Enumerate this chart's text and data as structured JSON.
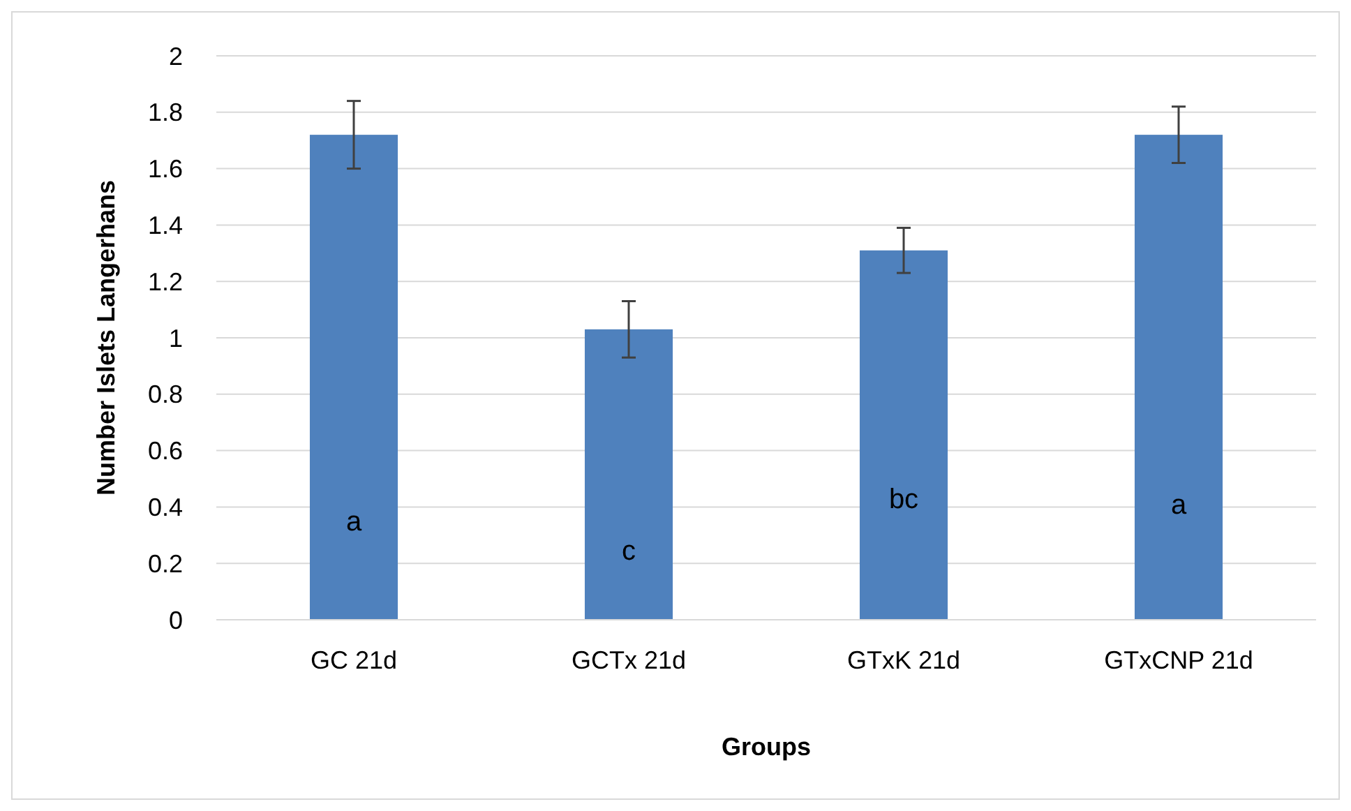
{
  "chart_data": {
    "type": "bar",
    "xlabel": "Groups",
    "ylabel": "Number Islets Langerhans",
    "categories": [
      "GC 21d",
      "GCTx 21d",
      "GTxK 21d",
      "GTxCNP 21d"
    ],
    "values": [
      1.72,
      1.03,
      1.31,
      1.72
    ],
    "errors": [
      0.12,
      0.1,
      0.08,
      0.1
    ],
    "color": "#4f81bd",
    "ylim": [
      0,
      2
    ],
    "yticks": [
      0,
      0.2,
      0.4,
      0.6,
      0.8,
      1,
      1.2,
      1.4,
      1.6,
      1.8,
      2
    ],
    "grid": "y",
    "annotations": [
      "a",
      "c",
      "bc",
      "a"
    ]
  }
}
